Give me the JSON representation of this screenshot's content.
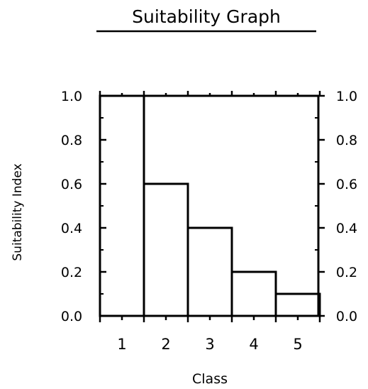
{
  "chart_data": {
    "type": "bar",
    "title": "Suitability Graph",
    "xlabel": "Class",
    "ylabel": "Suitability Index",
    "categories": [
      "1",
      "2",
      "3",
      "4",
      "5"
    ],
    "values": [
      1.0,
      0.6,
      0.4,
      0.2,
      0.1
    ],
    "ylim": [
      0.0,
      1.0
    ],
    "yticks": [
      "0.0",
      "0.2",
      "0.4",
      "0.6",
      "0.8",
      "1.0"
    ],
    "grid": false,
    "legend": "none"
  },
  "colors": {
    "ink": "#000000",
    "background": "#ffffff"
  }
}
